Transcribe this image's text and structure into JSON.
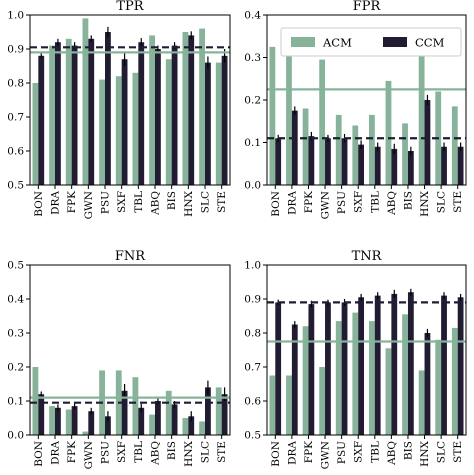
{
  "colors": {
    "acm": "#88b39b",
    "ccm": "#221c33",
    "frame": "#000000"
  },
  "legend": {
    "panel": 1,
    "position": "top-right",
    "entries": [
      {
        "label": "ACM",
        "color": "#88b39b"
      },
      {
        "label": "CCM",
        "color": "#221c33"
      }
    ]
  },
  "chart_data": [
    {
      "type": "bar",
      "title": "TPR",
      "categories": [
        "BON",
        "DRA",
        "FPK",
        "GWN",
        "PSU",
        "SXF",
        "TBL",
        "ABQ",
        "BIS",
        "HNX",
        "SLC",
        "STE"
      ],
      "ylim": [
        0.5,
        1.0
      ],
      "yticks": [
        0.5,
        0.6,
        0.7,
        0.8,
        0.9,
        1.0
      ],
      "tick_labels": [
        "0.5",
        "0.6",
        "0.7",
        "0.8",
        "0.9",
        "1.0"
      ],
      "series": [
        {
          "name": "ACM",
          "values": [
            0.8,
            0.91,
            0.93,
            0.99,
            0.81,
            0.82,
            0.83,
            0.94,
            0.87,
            0.95,
            0.96,
            0.86
          ],
          "errors": [
            0,
            0,
            0,
            0,
            0,
            0,
            0,
            0,
            0,
            0,
            0,
            0
          ]
        },
        {
          "name": "CCM",
          "values": [
            0.88,
            0.92,
            0.91,
            0.93,
            0.95,
            0.87,
            0.92,
            0.9,
            0.91,
            0.94,
            0.86,
            0.88
          ],
          "errors": [
            0.007,
            0.01,
            0.01,
            0.01,
            0.015,
            0.02,
            0.012,
            0.01,
            0.01,
            0.012,
            0.018,
            0.02
          ]
        }
      ],
      "reference_lines": {
        "ACM": 0.89,
        "CCM": 0.905
      }
    },
    {
      "type": "bar",
      "title": "FPR",
      "categories": [
        "BON",
        "DRA",
        "FPK",
        "GWN",
        "PSU",
        "SXF",
        "TBL",
        "ABQ",
        "BIS",
        "HNX",
        "SLC",
        "STE"
      ],
      "ylim": [
        0.0,
        0.4
      ],
      "yticks": [
        0.0,
        0.1,
        0.2,
        0.3,
        0.4
      ],
      "tick_labels": [
        "0.0",
        "0.1",
        "0.2",
        "0.3",
        "0.4"
      ],
      "series": [
        {
          "name": "ACM",
          "values": [
            0.325,
            0.325,
            0.18,
            0.295,
            0.165,
            0.14,
            0.165,
            0.245,
            0.145,
            0.31,
            0.22,
            0.185
          ],
          "errors": [
            0,
            0,
            0,
            0,
            0,
            0,
            0,
            0,
            0,
            0,
            0,
            0
          ]
        },
        {
          "name": "CCM",
          "values": [
            0.11,
            0.175,
            0.115,
            0.11,
            0.11,
            0.095,
            0.09,
            0.085,
            0.08,
            0.2,
            0.09,
            0.09
          ],
          "errors": [
            0.008,
            0.01,
            0.01,
            0.008,
            0.01,
            0.01,
            0.01,
            0.012,
            0.01,
            0.012,
            0.01,
            0.01
          ]
        }
      ],
      "reference_lines": {
        "ACM": 0.225,
        "CCM": 0.11
      }
    },
    {
      "type": "bar",
      "title": "FNR",
      "categories": [
        "BON",
        "DRA",
        "FPK",
        "GWN",
        "PSU",
        "SXF",
        "TBL",
        "ABQ",
        "BIS",
        "HNX",
        "SLC",
        "STE"
      ],
      "ylim": [
        0.0,
        0.5
      ],
      "yticks": [
        0.0,
        0.1,
        0.2,
        0.3,
        0.4,
        0.5
      ],
      "tick_labels": [
        "0.0",
        "0.1",
        "0.2",
        "0.3",
        "0.4",
        "0.5"
      ],
      "series": [
        {
          "name": "ACM",
          "values": [
            0.2,
            0.085,
            0.075,
            0.01,
            0.19,
            0.19,
            0.17,
            0.06,
            0.13,
            0.05,
            0.04,
            0.14
          ],
          "errors": [
            0,
            0,
            0,
            0,
            0,
            0,
            0,
            0,
            0,
            0,
            0,
            0
          ]
        },
        {
          "name": "CCM",
          "values": [
            0.12,
            0.08,
            0.085,
            0.07,
            0.055,
            0.13,
            0.08,
            0.1,
            0.09,
            0.055,
            0.14,
            0.12
          ],
          "errors": [
            0.008,
            0.01,
            0.01,
            0.01,
            0.015,
            0.02,
            0.012,
            0.01,
            0.01,
            0.015,
            0.02,
            0.02
          ]
        }
      ],
      "reference_lines": {
        "ACM": 0.11,
        "CCM": 0.095
      }
    },
    {
      "type": "bar",
      "title": "TNR",
      "categories": [
        "BON",
        "DRA",
        "FPK",
        "GWN",
        "PSU",
        "SXF",
        "TBL",
        "ABQ",
        "BIS",
        "HNX",
        "SLC",
        "STE"
      ],
      "ylim": [
        0.5,
        1.0
      ],
      "yticks": [
        0.5,
        0.6,
        0.7,
        0.8,
        0.9,
        1.0
      ],
      "tick_labels": [
        "0.5",
        "0.6",
        "0.7",
        "0.8",
        "0.9",
        "1.0"
      ],
      "series": [
        {
          "name": "ACM",
          "values": [
            0.675,
            0.675,
            0.82,
            0.7,
            0.835,
            0.86,
            0.835,
            0.755,
            0.855,
            0.69,
            0.78,
            0.815
          ],
          "errors": [
            0,
            0,
            0,
            0,
            0,
            0,
            0,
            0,
            0,
            0,
            0,
            0
          ]
        },
        {
          "name": "CCM",
          "values": [
            0.89,
            0.825,
            0.885,
            0.89,
            0.89,
            0.905,
            0.91,
            0.915,
            0.92,
            0.8,
            0.91,
            0.905
          ],
          "errors": [
            0.008,
            0.01,
            0.01,
            0.008,
            0.01,
            0.01,
            0.01,
            0.012,
            0.01,
            0.012,
            0.01,
            0.01
          ]
        }
      ],
      "reference_lines": {
        "ACM": 0.775,
        "CCM": 0.89
      }
    }
  ]
}
